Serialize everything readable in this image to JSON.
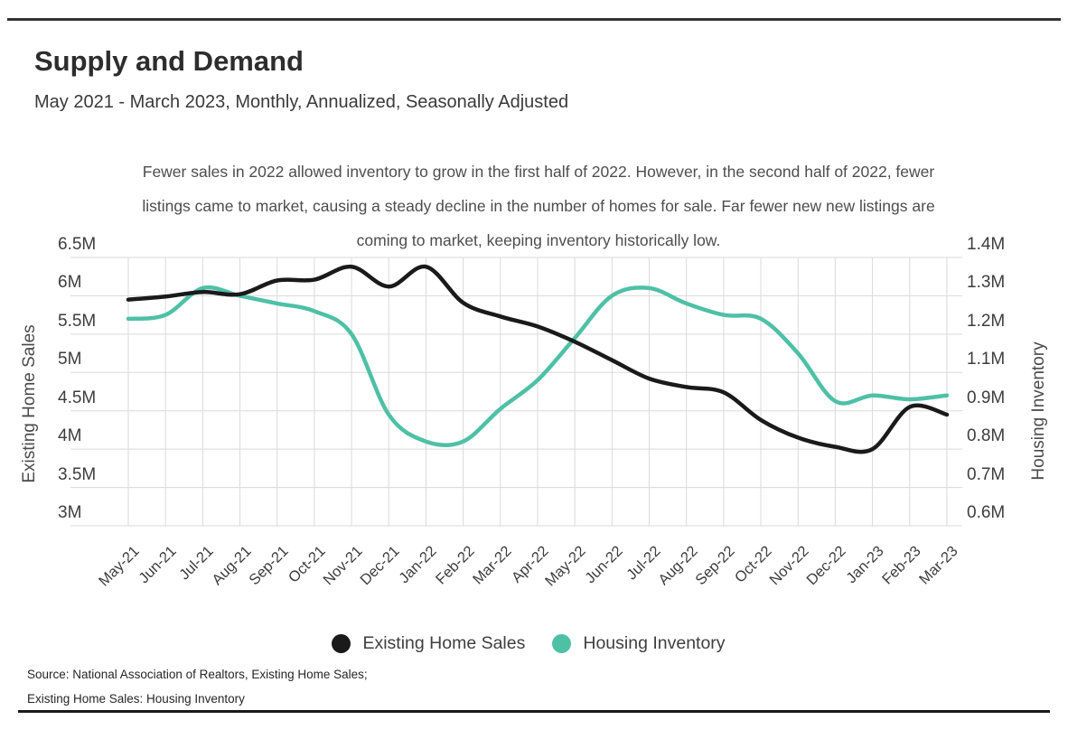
{
  "page": {
    "title": "Supply and Demand",
    "subtitle": "May 2021 - March 2023, Monthly, Annualized, Seasonally Adjusted",
    "annotation_lines": [
      "Fewer sales in 2022 allowed inventory to grow in the first half of 2022. However, in the second half of 2022, fewer",
      "listings came to market, causing a steady decline in the number of homes for sale. Far fewer new new listings are",
      "coming to market, keeping inventory historically low."
    ],
    "source_line1": "Source:  National Association of Realtors, Existing Home Sales;",
    "source_line2": "Existing Home Sales: Housing Inventory"
  },
  "legend": {
    "items": [
      {
        "label": "Existing Home Sales",
        "color": "#1a1a1a"
      },
      {
        "label": "Housing Inventory",
        "color": "#4ec0a6"
      }
    ]
  },
  "chart_data": {
    "type": "line",
    "title": "Supply and Demand",
    "x_labels": [
      "May-21",
      "Jun-21",
      "Jul-21",
      "Aug-21",
      "Sep-21",
      "Oct-21",
      "Nov-21",
      "Dec-21",
      "Jan-22",
      "Feb-22",
      "Mar-22",
      "Apr-22",
      "May-22",
      "Jun-22",
      "Jul-22",
      "Aug-22",
      "Sep-22",
      "Oct-22",
      "Nov-22",
      "Dec-22",
      "Jan-23",
      "Feb-23",
      "Mar-23"
    ],
    "series": [
      {
        "name": "Existing Home Sales",
        "axis": "left",
        "color": "#1a1a1a",
        "values": [
          5.95,
          5.99,
          6.05,
          6.02,
          6.2,
          6.21,
          6.38,
          6.12,
          6.38,
          5.91,
          5.73,
          5.6,
          5.4,
          5.16,
          4.92,
          4.81,
          4.74,
          4.38,
          4.15,
          4.03,
          4.0,
          4.55,
          4.45
        ]
      },
      {
        "name": "Housing Inventory",
        "axis": "right",
        "color": "#4ec0a6",
        "values": [
          1.24,
          1.25,
          1.32,
          1.3,
          1.28,
          1.26,
          1.2,
          0.89,
          0.82,
          0.82,
          0.91,
          1.06,
          1.19,
          1.3,
          1.32,
          1.28,
          1.25,
          1.24,
          1.15,
          0.95,
          0.98,
          0.96,
          0.98
        ]
      }
    ],
    "left_axis": {
      "title": "Existing Home Sales",
      "tick_labels": [
        "6.5M",
        "6M",
        "5.5M",
        "5M",
        "4.5M",
        "4M",
        "3.5M",
        "3M"
      ],
      "tick_values": [
        6.5,
        6,
        5.5,
        5,
        4.5,
        4,
        3.5,
        3
      ],
      "range": [
        3,
        6.5
      ]
    },
    "right_axis": {
      "title": "Housing Inventory",
      "tick_labels": [
        "1.4M",
        "1.3M",
        "1.2M",
        "1.1M",
        "0.9M",
        "0.8M",
        "0.7M",
        "0.6M"
      ],
      "tick_values": [
        1.4,
        1.3,
        1.2,
        1.1,
        0.9,
        0.8,
        0.7,
        0.6
      ],
      "range": [
        0.6,
        1.4
      ]
    },
    "grid": true,
    "legend_position": "bottom-center"
  }
}
